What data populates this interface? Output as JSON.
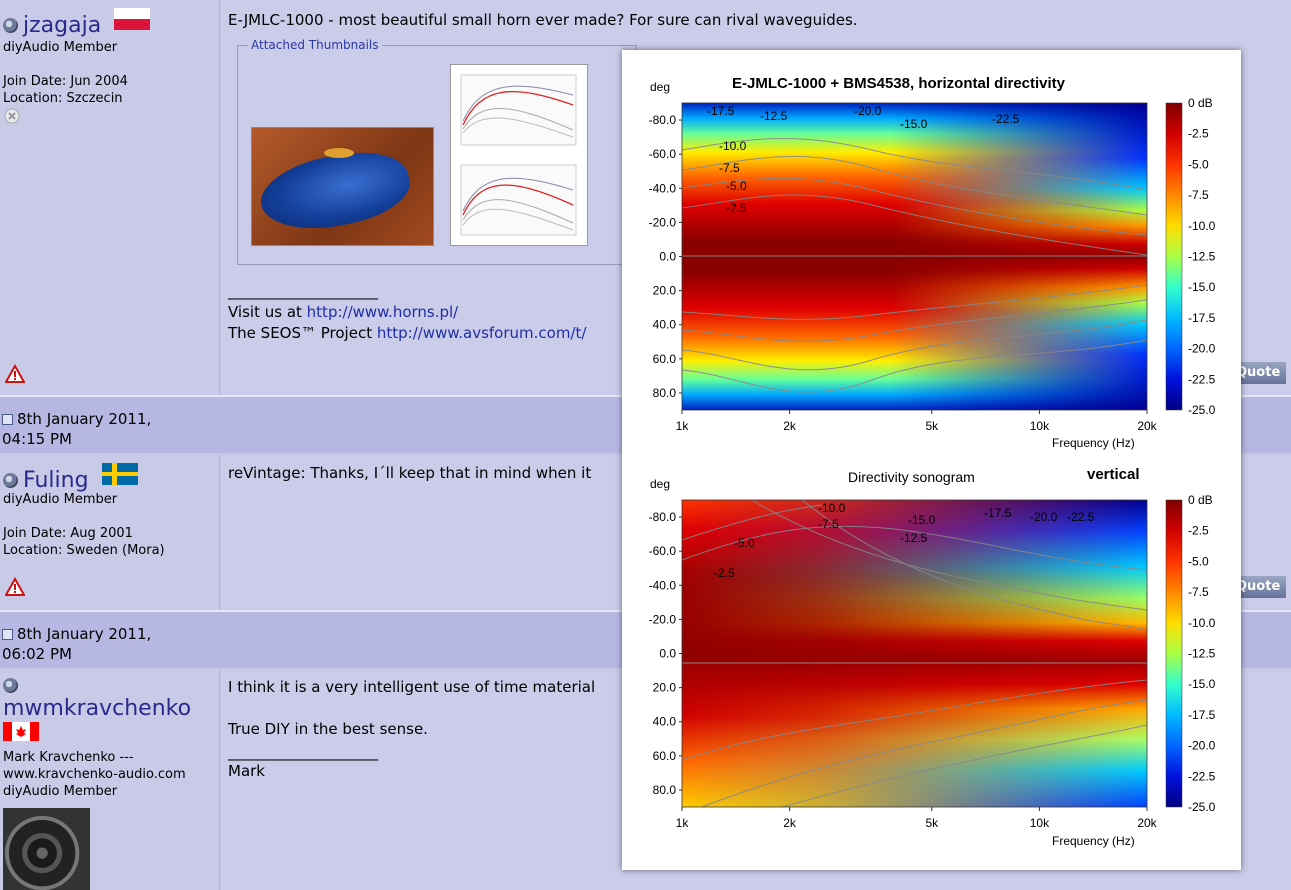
{
  "posts": [
    {
      "username": "jzagaja",
      "role": "diyAudio Member",
      "join": "Join Date: Jun 2004",
      "location": "Location: Szczecin",
      "title": "E-JMLC-1000 - most beautiful small horn ever made? For sure can rival waveguides.",
      "attached": "Attached Thumbnails",
      "sig_line": "____________________",
      "visit_prefix": "Visit us at ",
      "visit_link": "http://www.horns.pl/",
      "seos_prefix": "The SEOS™ Project ",
      "seos_link": "http://www.avsforum.com/t/",
      "quote": "Quote"
    },
    {
      "date": "8th January 2011,",
      "time": "04:15 PM",
      "username": "Fuling",
      "role": "diyAudio Member",
      "join": "Join Date: Aug 2001",
      "location": "Location: Sweden (Mora)",
      "text": "reVintage: Thanks, I´ll keep that in mind when it",
      "quote": "Quote"
    },
    {
      "date": "8th January 2011,",
      "time": "06:02 PM",
      "username": "mwmkravchenko",
      "sub1": "Mark Kravchenko ---",
      "sub2": "www.kravchenko-audio.com",
      "role": "diyAudio Member",
      "text1": "I think it is a very intelligent use of time material",
      "text2": "True DIY in the best sense.",
      "sig_line": "____________________",
      "sig": "Mark"
    }
  ],
  "colors": {
    "flag_pl": "#dc143c",
    "flag_se_blue": "#006aa7",
    "flag_se_yellow": "#fecc00",
    "flag_ca": "#ff0000"
  },
  "chart_data": [
    {
      "type": "heatmap",
      "title": "E-JMLC-1000 + BMS4538, horizontal directivity",
      "ylabel": "deg",
      "xlabel": "Frequency (Hz)",
      "x_ticks": [
        "1k",
        "2k",
        "5k",
        "10k",
        "20k"
      ],
      "x_scale": "log",
      "xlim": [
        1000,
        20000
      ],
      "y_ticks": [
        "-80.0",
        "-60.0",
        "-40.0",
        "-20.0",
        "0.0",
        "20.0",
        "40.0",
        "60.0",
        "80.0"
      ],
      "ylim": [
        -90,
        90
      ],
      "colorbar_ticks": [
        "0 dB",
        "-2.5",
        "-5.0",
        "-7.5",
        "-10.0",
        "-12.5",
        "-15.0",
        "-17.5",
        "-20.0",
        "-22.5",
        "-25.0"
      ],
      "colorbar_range": [
        -25,
        0
      ],
      "contour_labels": [
        "-17.5",
        "-12.5",
        "-20.0",
        "-15.0",
        "-22.5",
        "-10.0",
        "-7.5",
        "-5.0",
        "-2.5"
      ]
    },
    {
      "type": "heatmap",
      "title": "Directivity sonogram",
      "subtitle": "vertical",
      "ylabel": "deg",
      "xlabel": "Frequency (Hz)",
      "x_ticks": [
        "1k",
        "2k",
        "5k",
        "10k",
        "20k"
      ],
      "x_scale": "log",
      "xlim": [
        1000,
        20000
      ],
      "y_ticks": [
        "-80.0",
        "-60.0",
        "-40.0",
        "-20.0",
        "0.0",
        "20.0",
        "40.0",
        "60.0",
        "80.0"
      ],
      "ylim": [
        -90,
        90
      ],
      "colorbar_ticks": [
        "0 dB",
        "-2.5",
        "-5.0",
        "-7.5",
        "-10.0",
        "-12.5",
        "-15.0",
        "-17.5",
        "-20.0",
        "-22.5",
        "-25.0"
      ],
      "colorbar_range": [
        -25,
        0
      ],
      "contour_labels": [
        "-10.0",
        "-7.5",
        "-15.0",
        "-12.5",
        "-17.5",
        "-20.0",
        "-22.5",
        "-5.0",
        "-2.5"
      ]
    }
  ]
}
